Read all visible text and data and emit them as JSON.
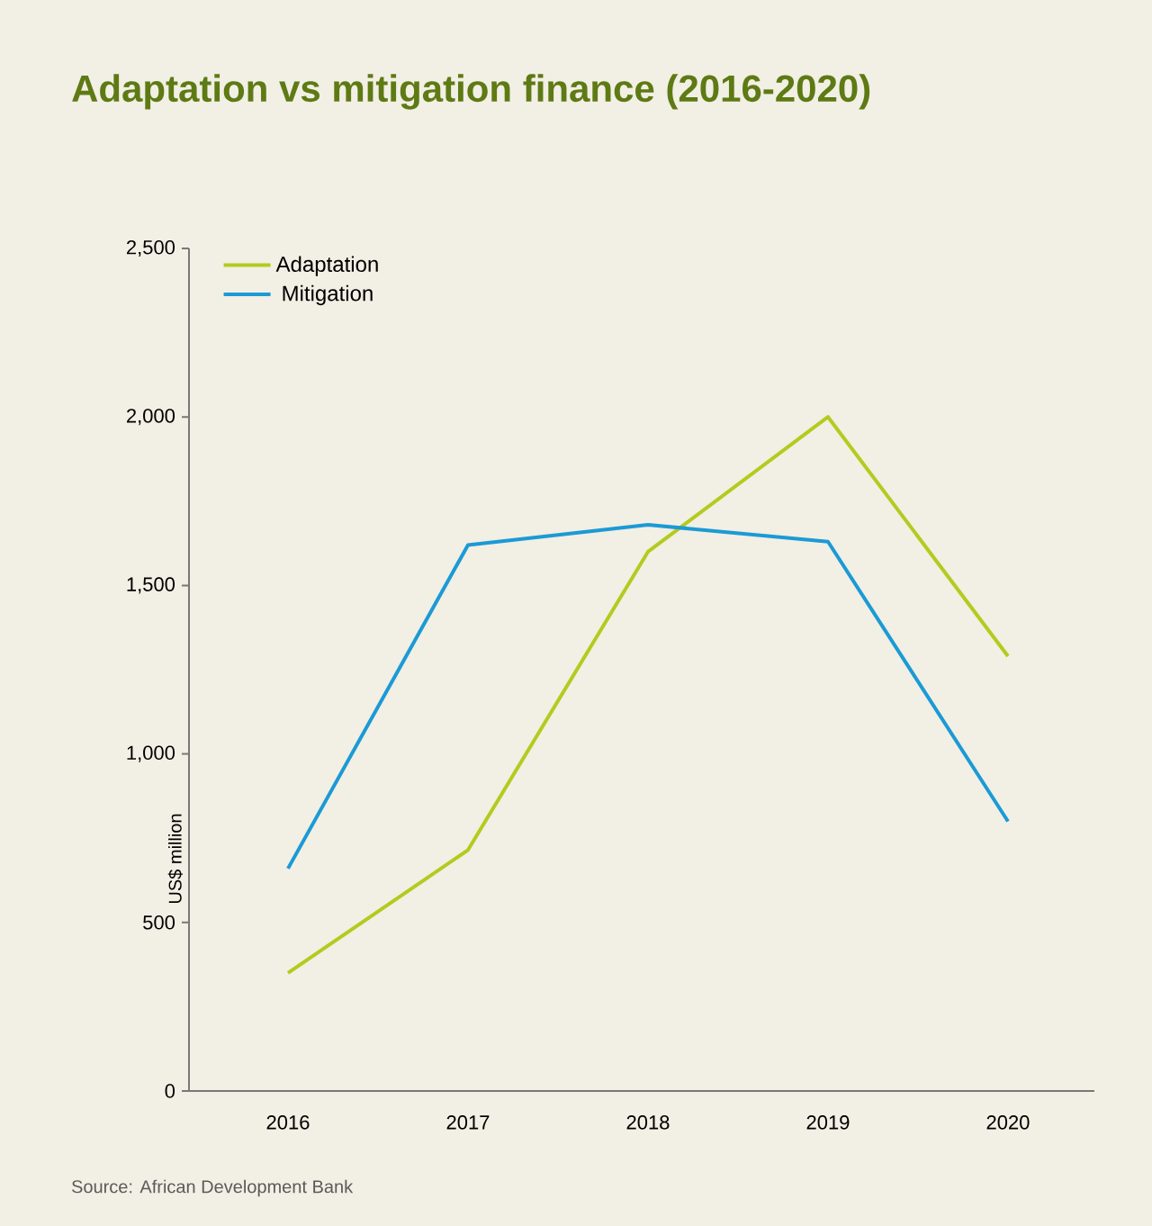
{
  "chart_data": {
    "type": "line",
    "title": "Adaptation vs mitigation finance (2016-2020)",
    "ylabel": "US$ million",
    "categories": [
      "2016",
      "2017",
      "2018",
      "2019",
      "2020"
    ],
    "series": [
      {
        "name": "Adaptation",
        "color": "#b3cb1f",
        "values": [
          350,
          715,
          1600,
          2000,
          1290
        ]
      },
      {
        "name": "Mitigation",
        "color": "#1b9ad6",
        "values": [
          660,
          1620,
          1680,
          1630,
          800
        ]
      }
    ],
    "ylim": [
      0,
      2500
    ],
    "yticks": [
      0,
      500,
      {
        "value": 1000,
        "label": "1,000"
      },
      {
        "value": 1500,
        "label": "1,500"
      },
      {
        "value": 2000,
        "label": "2,000"
      },
      {
        "value": 2500,
        "label": "2,500"
      }
    ],
    "legend": "top left",
    "grid": false,
    "marker": "none",
    "line_style": "solid",
    "annotations": [
      "Source: African Development Bank"
    ]
  }
}
